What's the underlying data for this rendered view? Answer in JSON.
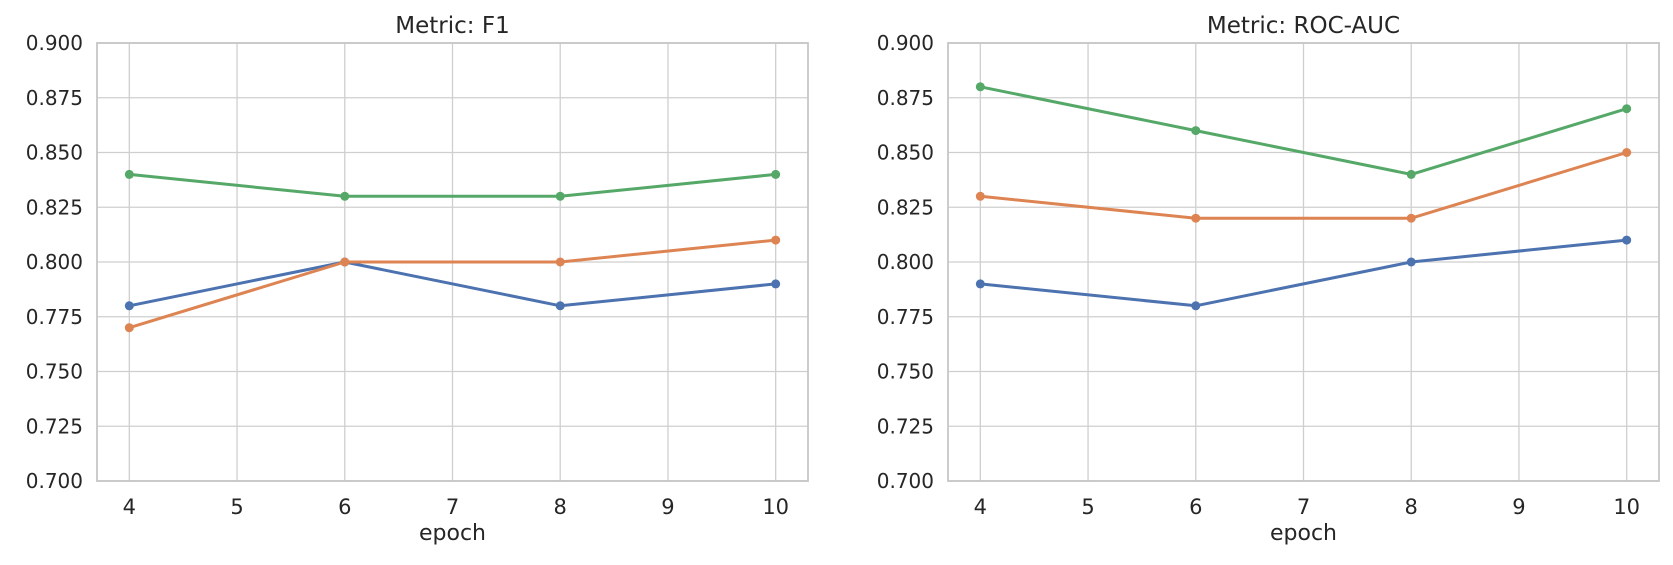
{
  "style": {
    "background_color": "#ffffff",
    "grid_color": "#cfcfcf",
    "spine_color": "#c6c6c6",
    "text_color": "#262626"
  },
  "chart_data": [
    {
      "type": "line",
      "title": "Metric: F1",
      "xlabel": "epoch",
      "ylabel": "",
      "x": [
        4,
        6,
        8,
        10
      ],
      "xticks": [
        4,
        5,
        6,
        7,
        8,
        9,
        10
      ],
      "ytick_labels": [
        "0.700",
        "0.725",
        "0.750",
        "0.775",
        "0.800",
        "0.825",
        "0.850",
        "0.875",
        "0.900"
      ],
      "xlim": [
        3.7,
        10.3
      ],
      "ylim": [
        0.7,
        0.9
      ],
      "grid": true,
      "legend": "none",
      "marker": "circle",
      "series": [
        {
          "name": "blue",
          "color": "#4c72b0",
          "values": [
            0.78,
            0.8,
            0.78,
            0.79
          ]
        },
        {
          "name": "orange",
          "color": "#dd8452",
          "values": [
            0.77,
            0.8,
            0.8,
            0.81
          ]
        },
        {
          "name": "green",
          "color": "#55a868",
          "values": [
            0.84,
            0.83,
            0.83,
            0.84
          ]
        }
      ]
    },
    {
      "type": "line",
      "title": "Metric: ROC-AUC",
      "xlabel": "epoch",
      "ylabel": "",
      "x": [
        4,
        6,
        8,
        10
      ],
      "xticks": [
        4,
        5,
        6,
        7,
        8,
        9,
        10
      ],
      "ytick_labels": [
        "0.700",
        "0.725",
        "0.750",
        "0.775",
        "0.800",
        "0.825",
        "0.850",
        "0.875",
        "0.900"
      ],
      "xlim": [
        3.7,
        10.3
      ],
      "ylim": [
        0.7,
        0.9
      ],
      "grid": true,
      "legend": "none",
      "marker": "circle",
      "series": [
        {
          "name": "blue",
          "color": "#4c72b0",
          "values": [
            0.79,
            0.78,
            0.8,
            0.81
          ]
        },
        {
          "name": "orange",
          "color": "#dd8452",
          "values": [
            0.83,
            0.82,
            0.82,
            0.85
          ]
        },
        {
          "name": "green",
          "color": "#55a868",
          "values": [
            0.88,
            0.86,
            0.84,
            0.87
          ]
        }
      ]
    }
  ]
}
